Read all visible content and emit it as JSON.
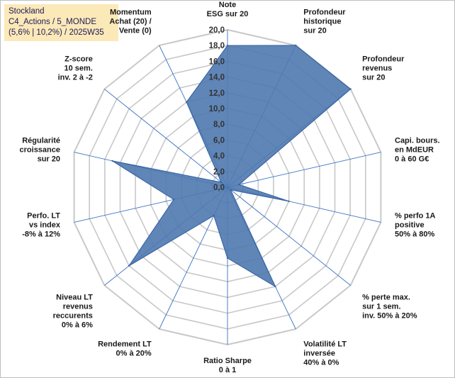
{
  "title_box": {
    "line1": "Stockland",
    "line2": "C4_Actions / 5_MONDE",
    "line3": "(5,6% | 10,2%) / 2025W35"
  },
  "chart_data": {
    "type": "radar",
    "rmin": 0,
    "rmax": 20,
    "tick_step": 2,
    "tick_labels": [
      "0,0",
      "2,0",
      "4,0",
      "6,0",
      "8,0",
      "10,0",
      "12,0",
      "14,0",
      "16,0",
      "18,0",
      "20,0"
    ],
    "axes": [
      {
        "label": [
          "Note",
          "ESG sur 20"
        ],
        "value": 18
      },
      {
        "label": [
          "Profondeur",
          "historique",
          "sur 20"
        ],
        "value": 20
      },
      {
        "label": [
          "Profondeur",
          "revenus",
          "sur 20"
        ],
        "value": 20
      },
      {
        "label": [
          "Capi. bours.",
          "en MdEUR",
          "0 à 60 G€"
        ],
        "value": 1.5
      },
      {
        "label": [
          "% perfo 1A",
          "positive",
          "50% à 80%"
        ],
        "value": 8
      },
      {
        "label": [
          "% perte max.",
          "sur 1 sem.",
          "inv. 50% à 20%"
        ],
        "value": 0.5
      },
      {
        "label": [
          "Volatilité LT",
          "inversée",
          "40% à 0%"
        ],
        "value": 14
      },
      {
        "label": [
          "Ratio Sharpe",
          "0 à 1"
        ],
        "value": 9
      },
      {
        "label": [
          "Rendement LT",
          "0% à 20%"
        ],
        "value": 4
      },
      {
        "label": [
          "Niveau LT",
          "revenus",
          "reccurents",
          "0% à 6%"
        ],
        "value": 16
      },
      {
        "label": [
          "Perfo. LT",
          "vs index",
          "-8% à 12%"
        ],
        "value": 7
      },
      {
        "label": [
          "Régularité",
          "croissance",
          "sur 20"
        ],
        "value": 15
      },
      {
        "label": [
          "Z-score",
          "10 sem.",
          "inv. 2 à -2"
        ],
        "value": 1
      },
      {
        "label": [
          "Momentum",
          "Achat (20) /",
          "Vente (0)"
        ],
        "value": 12
      }
    ],
    "colors": {
      "fill": "#4f79b0",
      "stroke": "#3a66a3",
      "grid": "#c8c8c8",
      "spoke": "#3a72c4"
    }
  }
}
